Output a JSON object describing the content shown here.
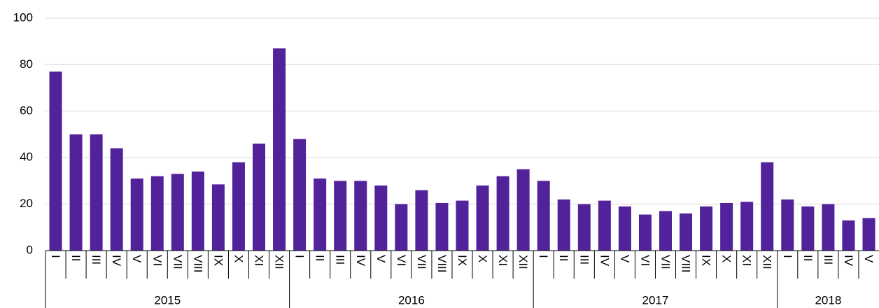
{
  "chart_data": {
    "type": "bar",
    "color": "#52229a",
    "grid": true,
    "ylim": [
      0,
      100
    ],
    "yticks": [
      0,
      20,
      40,
      60,
      80,
      100
    ],
    "groups": [
      {
        "label": "2015",
        "categories": [
          "I",
          "II",
          "III",
          "IV",
          "V",
          "VI",
          "VII",
          "VIII",
          "IX",
          "X",
          "XI",
          "XII"
        ],
        "values": [
          77,
          50,
          50,
          44,
          31,
          32,
          33,
          34,
          28.5,
          38,
          46,
          87
        ]
      },
      {
        "label": "2016",
        "categories": [
          "I",
          "II",
          "III",
          "IV",
          "V",
          "VI",
          "VII",
          "VIII",
          "IX",
          "X",
          "XI",
          "XII"
        ],
        "values": [
          48,
          31,
          30,
          30,
          28,
          20,
          26,
          20.5,
          21.5,
          28,
          32,
          35
        ]
      },
      {
        "label": "2017",
        "categories": [
          "I",
          "II",
          "III",
          "IV",
          "V",
          "VI",
          "VII",
          "VIII",
          "IX",
          "X",
          "XI",
          "XII"
        ],
        "values": [
          30,
          22,
          20,
          21.5,
          19,
          15.5,
          17,
          16,
          19,
          20.5,
          21,
          38
        ]
      },
      {
        "label": "2018",
        "categories": [
          "I",
          "II",
          "III",
          "IV",
          "V"
        ],
        "values": [
          22,
          19,
          20,
          13,
          14
        ]
      }
    ]
  }
}
